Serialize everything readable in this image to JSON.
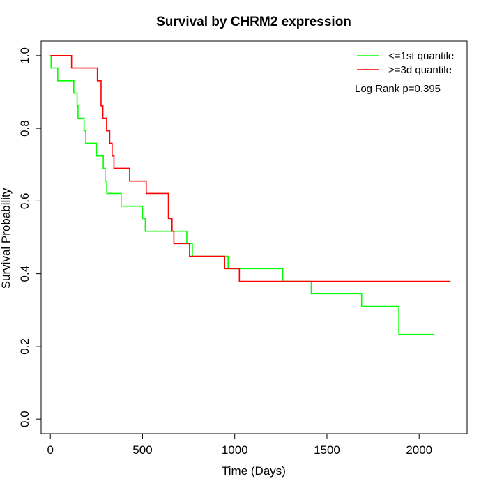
{
  "chart_data": {
    "type": "line",
    "step": true,
    "title": "Survival by CHRM2 expression",
    "xlabel": "Time (Days)",
    "ylabel": "Survival Probability",
    "xlim": [
      -50,
      2260
    ],
    "ylim": [
      -0.04,
      1.04
    ],
    "xticks": [
      0,
      500,
      1000,
      1500,
      2000
    ],
    "yticks": [
      0.0,
      0.2,
      0.4,
      0.6,
      0.8,
      1.0
    ],
    "xtick_labels": [
      "0",
      "500",
      "1000",
      "1500",
      "2000"
    ],
    "ytick_labels": [
      "0.0",
      "0.2",
      "0.4",
      "0.6",
      "0.8",
      "1.0"
    ],
    "legend_position": "top-right",
    "annotation": "Log Rank p=0.395",
    "series": [
      {
        "name": "<=1st quantile",
        "color": "#00ff00",
        "x": [
          0,
          4,
          40,
          127,
          145,
          150,
          183,
          192,
          201,
          250,
          287,
          297,
          306,
          317,
          384,
          500,
          515,
          525,
          740,
          770,
          964,
          978,
          1260,
          1415,
          1688,
          1890,
          2083
        ],
        "y": [
          1.0,
          0.966,
          0.931,
          0.897,
          0.862,
          0.828,
          0.793,
          0.759,
          0.759,
          0.724,
          0.69,
          0.655,
          0.621,
          0.621,
          0.586,
          0.552,
          0.517,
          0.517,
          0.483,
          0.448,
          0.414,
          0.414,
          0.379,
          0.345,
          0.31,
          0.233,
          0.233
        ]
      },
      {
        "name": ">=3d quantile",
        "color": "#ff0000",
        "x": [
          0,
          115,
          255,
          275,
          285,
          305,
          322,
          335,
          345,
          365,
          430,
          520,
          640,
          660,
          670,
          755,
          945,
          1025,
          2170
        ],
        "y": [
          1.0,
          0.966,
          0.931,
          0.862,
          0.828,
          0.793,
          0.759,
          0.724,
          0.69,
          0.69,
          0.655,
          0.621,
          0.552,
          0.517,
          0.483,
          0.448,
          0.414,
          0.379,
          0.379
        ]
      }
    ]
  }
}
